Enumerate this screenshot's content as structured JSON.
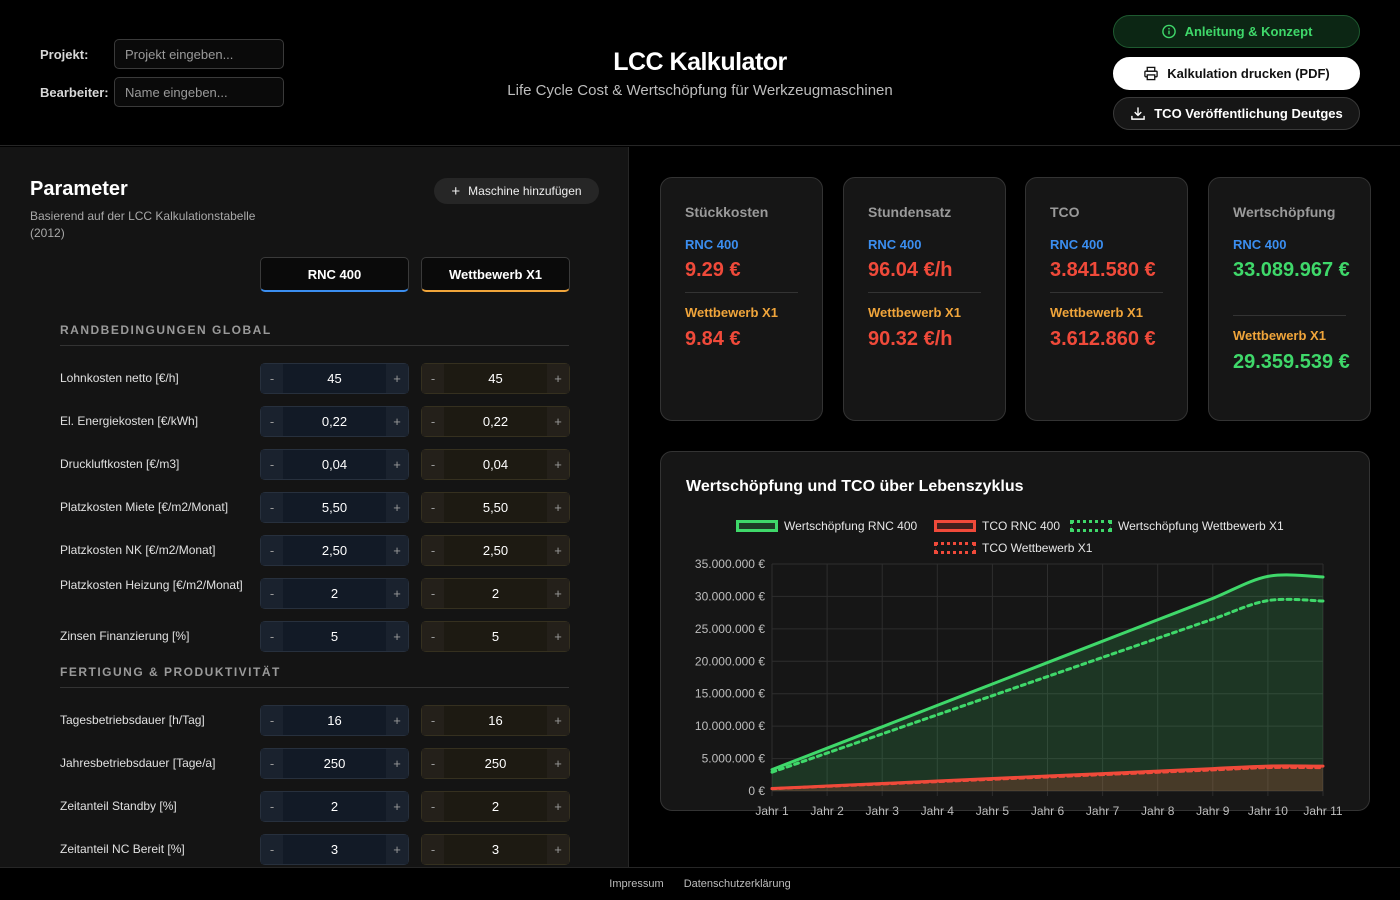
{
  "header": {
    "project_label": "Projekt:",
    "project_placeholder": "Projekt eingeben...",
    "editor_label": "Bearbeiter:",
    "editor_placeholder": "Name eingeben...",
    "title": "LCC Kalkulator",
    "subtitle": "Life Cycle Cost & Wertschöpfung für Werkzeugmaschinen",
    "btn_guide": "Anleitung & Konzept",
    "btn_print": "Kalkulation drucken (PDF)",
    "btn_download": "TCO Veröffentlichung Deutges",
    "accent_green": "#3fd86a"
  },
  "params": {
    "title": "Parameter",
    "subtitle": "Basierend auf der LCC Kalkulationstabelle (2012)",
    "add_machine": "Maschine hinzufügen",
    "machine_a": "RNC 400",
    "machine_b": "Wettbewerb X1",
    "color_a": "#3b8ef0",
    "color_b": "#f0a53b",
    "sections": [
      {
        "title": "RANDBEDINGUNGEN GLOBAL",
        "rows": [
          {
            "label": "Lohnkosten netto [€/h]",
            "a": "45",
            "b": "45"
          },
          {
            "label": "El. Energiekosten [€/kWh]",
            "a": "0,22",
            "b": "0,22"
          },
          {
            "label": "Druckluftkosten [€/m3]",
            "a": "0,04",
            "b": "0,04"
          },
          {
            "label": "Platzkosten Miete [€/m2/Monat]",
            "a": "5,50",
            "b": "5,50"
          },
          {
            "label": "Platzkosten NK [€/m2/Monat]",
            "a": "2,50",
            "b": "2,50"
          },
          {
            "label": "Platzkosten Heizung [€/m2/Monat]",
            "a": "2",
            "b": "2"
          },
          {
            "label": "Zinsen Finanzierung [%]",
            "a": "5",
            "b": "5"
          }
        ]
      },
      {
        "title": "FERTIGUNG & PRODUKTIVITÄT",
        "rows": [
          {
            "label": "Tagesbetriebsdauer [h/Tag]",
            "a": "16",
            "b": "16"
          },
          {
            "label": "Jahresbetriebsdauer [Tage/a]",
            "a": "250",
            "b": "250"
          },
          {
            "label": "Zeitanteil Standby [%]",
            "a": "2",
            "b": "2"
          },
          {
            "label": "Zeitanteil NC Bereit [%]",
            "a": "3",
            "b": "3"
          }
        ]
      }
    ],
    "minus": "-",
    "plus": "+"
  },
  "cards": [
    {
      "title": "Stückkosten",
      "a_name": "RNC 400",
      "a_value": "9.29 €",
      "b_name": "Wettbewerb X1",
      "b_value": "9.84 €",
      "tone": "red"
    },
    {
      "title": "Stundensatz",
      "a_name": "RNC 400",
      "a_value": "96.04 €/h",
      "b_name": "Wettbewerb X1",
      "b_value": "90.32 €/h",
      "tone": "red"
    },
    {
      "title": "TCO",
      "a_name": "RNC 400",
      "a_value": "3.841.580 €",
      "b_name": "Wettbewerb X1",
      "b_value": "3.612.860 €",
      "tone": "red"
    },
    {
      "title": "Wertschöpfung",
      "a_name": "RNC 400",
      "a_value": "33.089.967 €",
      "b_name": "Wettbewerb X1",
      "b_value": "29.359.539 €",
      "tone": "green"
    }
  ],
  "chart_data": {
    "type": "line",
    "title": "Wertschöpfung und TCO über Lebenszyklus",
    "categories": [
      "Jahr 1",
      "Jahr 2",
      "Jahr 3",
      "Jahr 4",
      "Jahr 5",
      "Jahr 6",
      "Jahr 7",
      "Jahr 8",
      "Jahr 9",
      "Jahr 10",
      "Jahr 11"
    ],
    "ylim": [
      0,
      35000000
    ],
    "yticks": [
      "0 €",
      "5.000.000 €",
      "10.000.000 €",
      "15.000.000 €",
      "20.000.000 €",
      "25.000.000 €",
      "30.000.000 €",
      "35.000.000 €"
    ],
    "grid": true,
    "legend_position": "top",
    "series": [
      {
        "name": "Wertschöpfung RNC 400",
        "color": "#3fd86a",
        "dashed": false,
        "fill": true,
        "values": [
          3300000,
          6600000,
          9900000,
          13200000,
          16500000,
          19800000,
          23100000,
          26400000,
          29700000,
          33089967,
          33000000
        ]
      },
      {
        "name": "TCO RNC 400",
        "color": "#f04a3a",
        "dashed": false,
        "fill": true,
        "values": [
          384000,
          768000,
          1152000,
          1536000,
          1920000,
          2304000,
          2688000,
          3072000,
          3456000,
          3841580,
          3830000
        ]
      },
      {
        "name": "Wertschöpfung Wettbewerb X1",
        "color": "#3fd86a",
        "dashed": true,
        "fill": false,
        "values": [
          2900000,
          5850000,
          8800000,
          11750000,
          14700000,
          17650000,
          20600000,
          23550000,
          26500000,
          29359539,
          29300000
        ]
      },
      {
        "name": "TCO Wettbewerb X1",
        "color": "#f04a3a",
        "dashed": true,
        "fill": false,
        "values": [
          361000,
          722000,
          1083000,
          1444000,
          1805000,
          2166000,
          2527000,
          2888000,
          3249000,
          3612860,
          3600000
        ]
      }
    ]
  },
  "footer": {
    "impressum": "Impressum",
    "privacy": "Datenschutzerklärung"
  }
}
